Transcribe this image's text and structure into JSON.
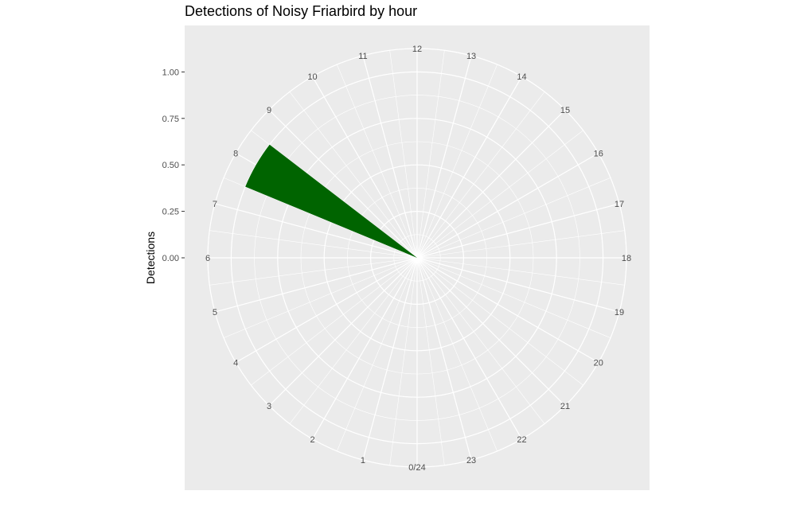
{
  "chart_data": {
    "type": "bar",
    "coord": "polar",
    "title": "Detections of Noisy Friarbird by hour",
    "xlabel": "",
    "ylabel": "Detections",
    "categories": [
      "0/24",
      "1",
      "2",
      "3",
      "4",
      "5",
      "6",
      "7",
      "8",
      "9",
      "10",
      "11",
      "12",
      "13",
      "14",
      "15",
      "16",
      "17",
      "18",
      "19",
      "20",
      "21",
      "22",
      "23"
    ],
    "values": [
      0,
      0,
      0,
      0,
      0,
      0,
      0,
      0,
      1,
      0,
      0,
      0,
      0,
      0,
      0,
      0,
      0,
      0,
      0,
      0,
      0,
      0,
      0,
      0
    ],
    "ylim": [
      0,
      1
    ],
    "y_ticks": [
      0.0,
      0.25,
      0.5,
      0.75,
      1.0
    ],
    "y_tick_labels": [
      "0.00",
      "0.25",
      "0.50",
      "0.75",
      "1.00"
    ],
    "bar_color": "#006400",
    "panel_background": "#EBEBEB",
    "grid_color": "#FFFFFF",
    "grid": true,
    "legend": "none"
  }
}
